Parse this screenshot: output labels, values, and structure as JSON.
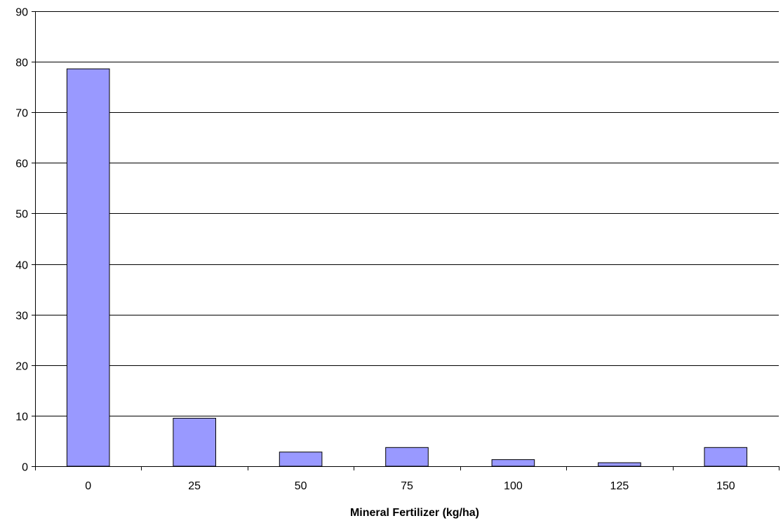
{
  "chart_data": {
    "type": "bar",
    "title": "",
    "xlabel": "Mineral Fertilizer (kg/ha)",
    "ylabel": "",
    "categories": [
      "0",
      "25",
      "50",
      "75",
      "100",
      "125",
      "150"
    ],
    "values": [
      78.6,
      9.5,
      2.8,
      3.7,
      1.3,
      0.7,
      3.7
    ],
    "ylim": [
      0,
      90
    ],
    "yticks": [
      0,
      10,
      20,
      30,
      40,
      50,
      60,
      70,
      80,
      90
    ],
    "grid": true,
    "legend": "none",
    "colors": {
      "bar_fill": "#9999ff",
      "bar_stroke": "#000000",
      "grid": "#000000"
    }
  }
}
